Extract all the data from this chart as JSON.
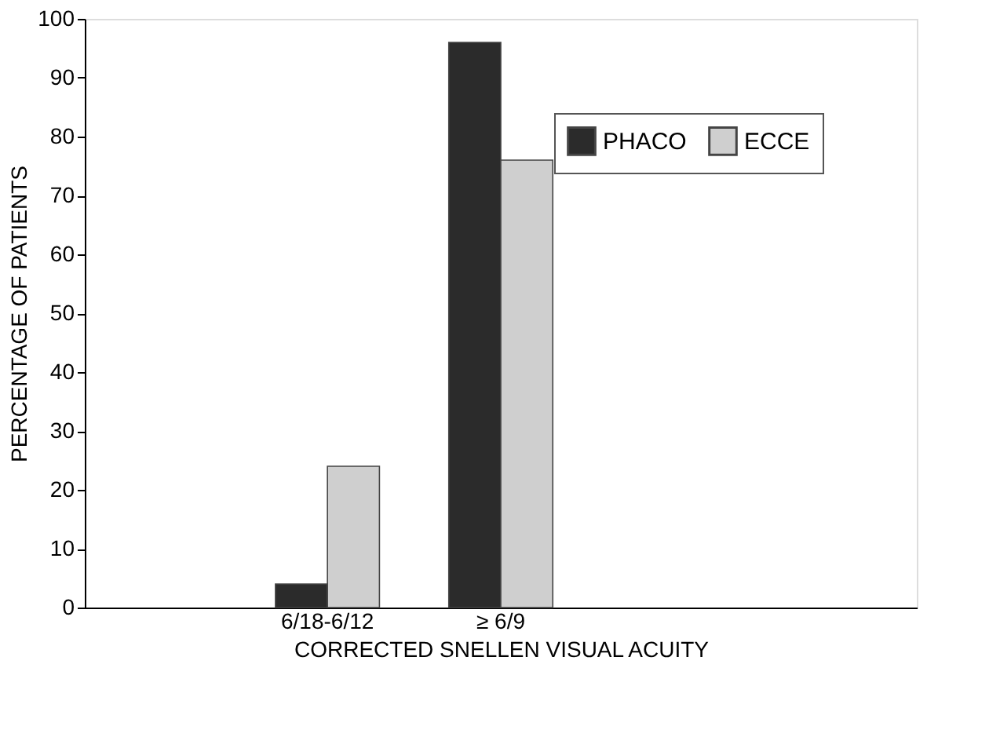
{
  "chart_data": {
    "type": "bar",
    "xlabel": "CORRECTED SNELLEN VISUAL ACUITY",
    "ylabel": "PERCENTAGE OF PATIENTS",
    "categories": [
      null,
      "6/18-6/12",
      "≥ 6/9",
      null,
      null
    ],
    "series": [
      {
        "name": "PHACO",
        "color": "#2b2b2b",
        "values": [
          null,
          4,
          96,
          null,
          null
        ]
      },
      {
        "name": "ECCE",
        "color": "#cfcfcf",
        "values": [
          null,
          24,
          76,
          null,
          null
        ]
      }
    ],
    "ylim": [
      0,
      100
    ],
    "yticks": [
      0,
      10,
      20,
      30,
      40,
      50,
      60,
      70,
      80,
      90,
      100
    ],
    "grid": false,
    "legend": "top right"
  }
}
